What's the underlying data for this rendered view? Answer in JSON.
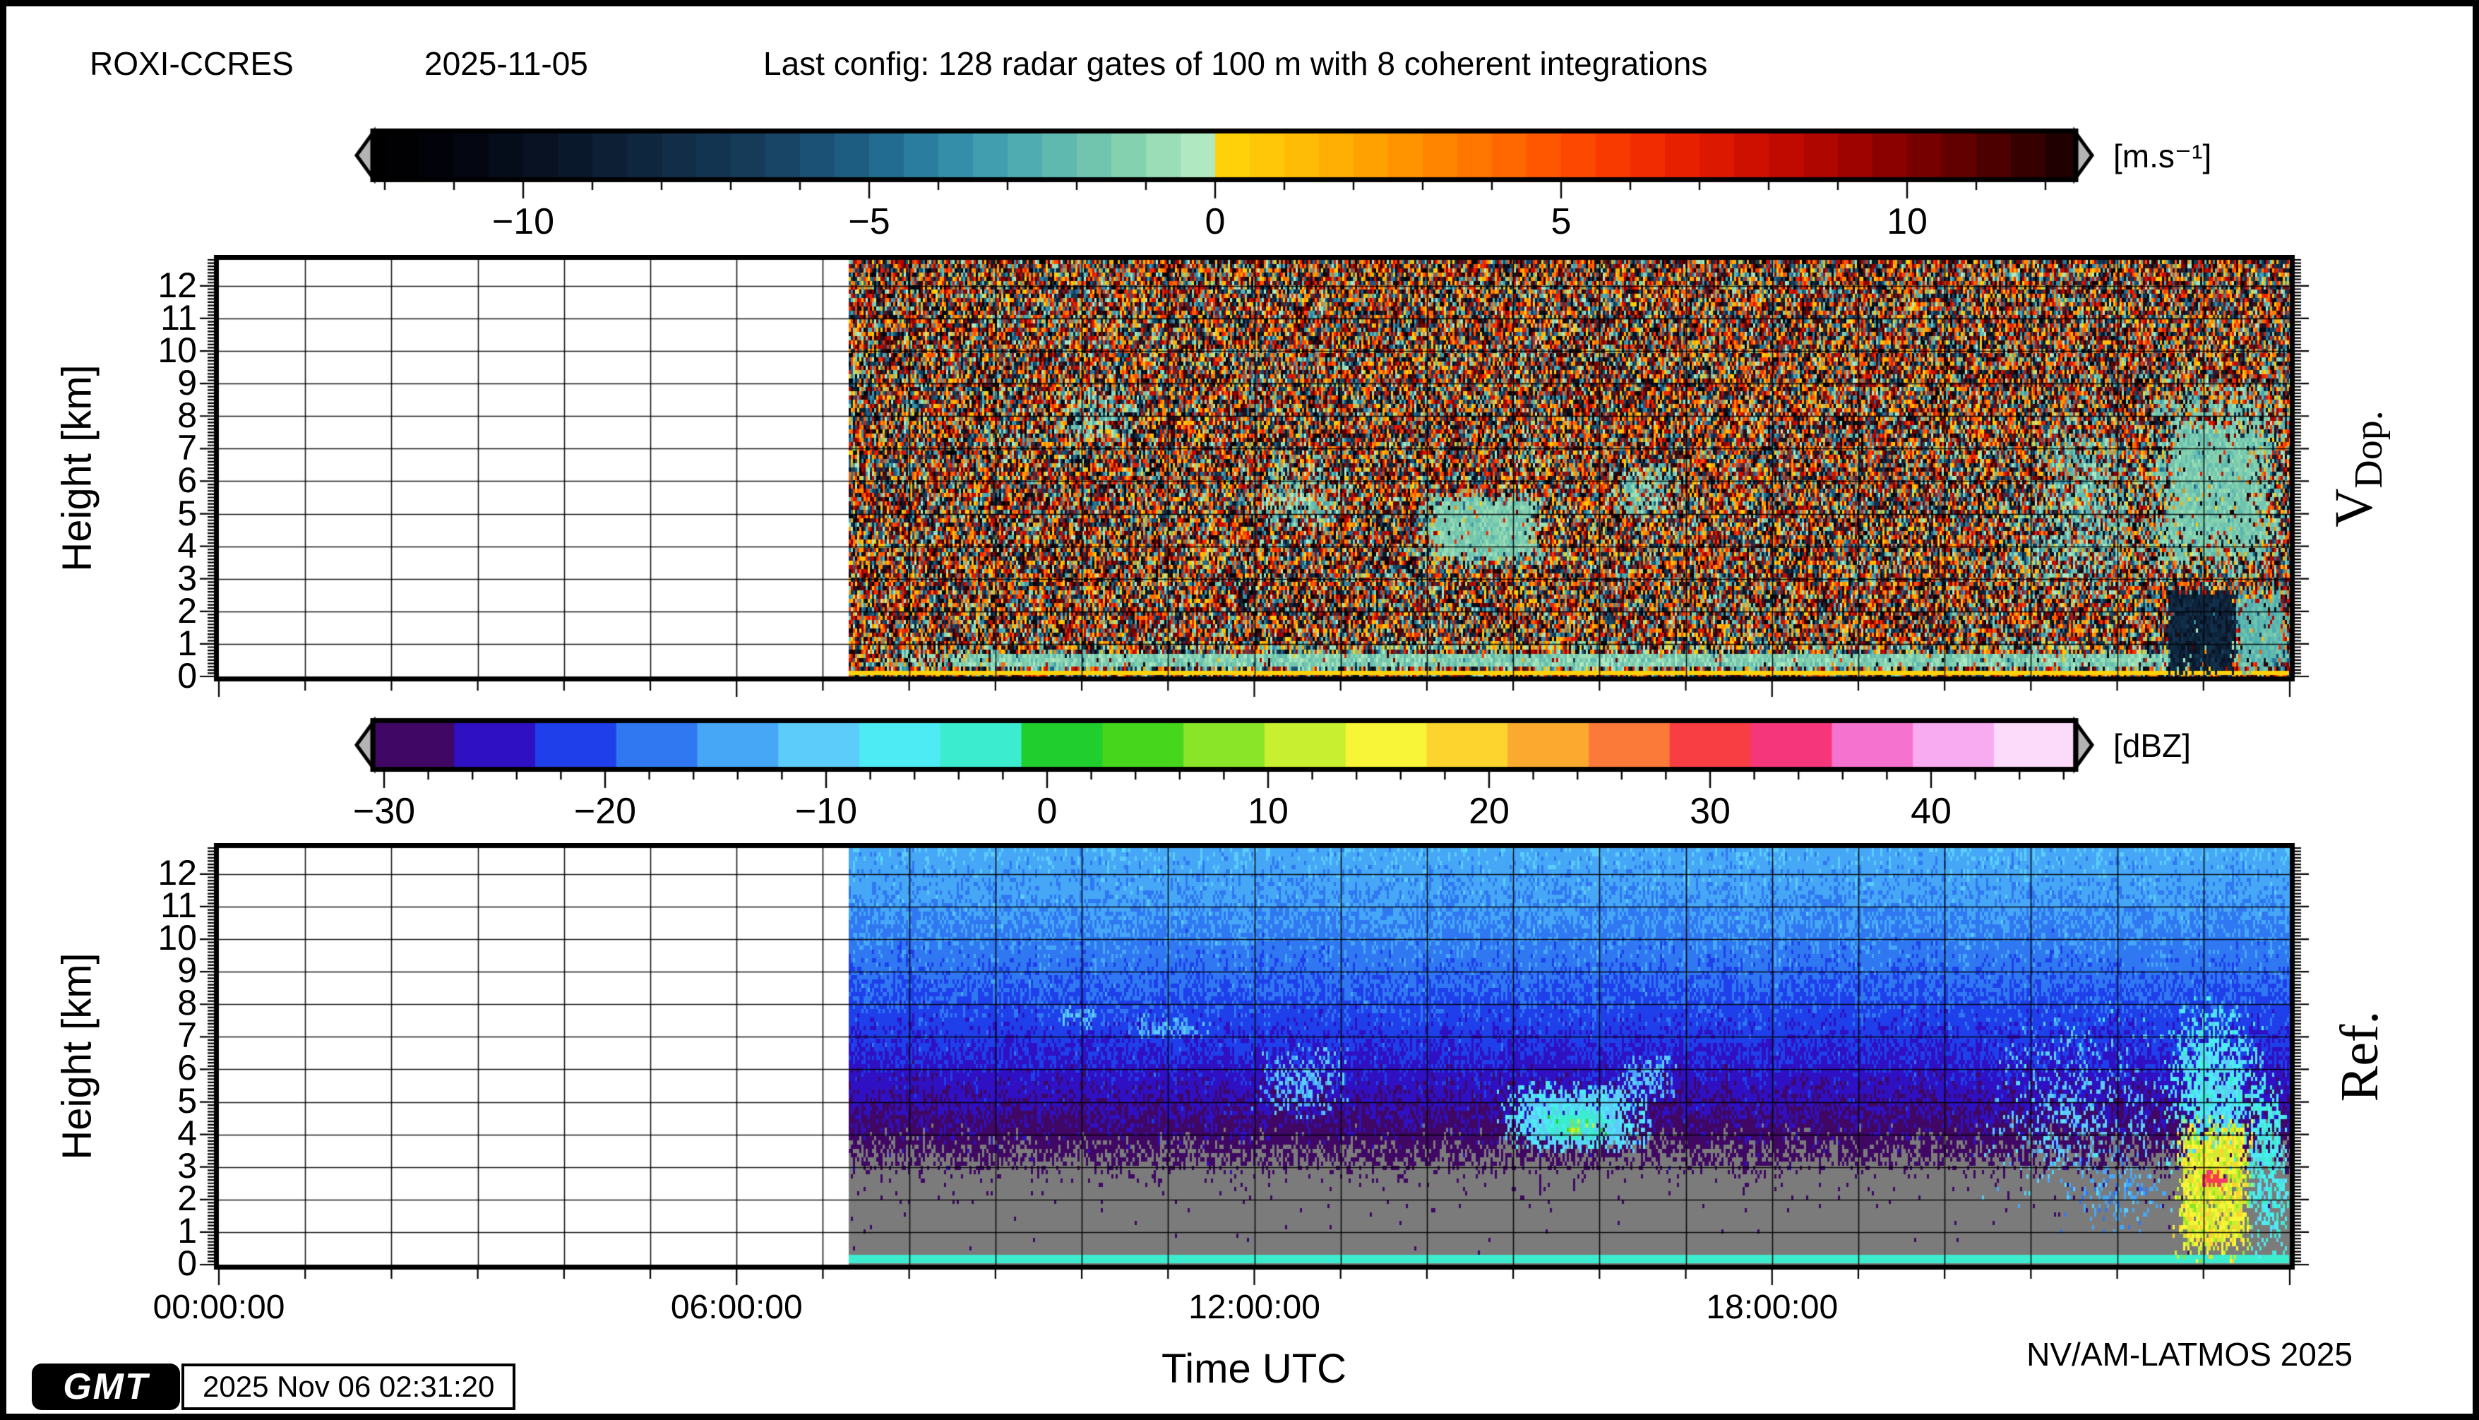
{
  "header": {
    "station": "ROXI-CCRES",
    "date": "2025-11-05",
    "config": "Last config: 128 radar gates of 100 m with 8 coherent integrations"
  },
  "footer": {
    "gmt_logo": "GMT",
    "timestamp": "2025 Nov 06 02:31:20",
    "credit": "NV/AM-LATMOS 2025"
  },
  "x_axis_title": "Time UTC",
  "chart_data": [
    {
      "id": "vdop",
      "type": "heatmap",
      "panel_label": {
        "main": "V",
        "sub": "Dop."
      },
      "y_axis": {
        "label": "Height [km]",
        "min": 0,
        "max": 12.8,
        "major_tick_step": 1,
        "minor_tick_step": 0.1,
        "tick_labels": [
          "0",
          "1",
          "2",
          "3",
          "4",
          "5",
          "6",
          "7",
          "8",
          "9",
          "10",
          "11",
          "12"
        ]
      },
      "x_axis": {
        "min_hour": 0,
        "max_hour": 24,
        "minor_tick_hours": 1,
        "major_tick_hours": 6,
        "tick_labels": [
          "00:00:00",
          "06:00:00",
          "12:00:00",
          "18:00:00"
        ],
        "tick_hours": [
          0,
          6,
          12,
          18
        ]
      },
      "data_start_hour": 7.3,
      "noise": "uniform",
      "colorbar": {
        "unit": "[m.s⁻¹]",
        "min": -12.16,
        "max": 12.43,
        "cell_step": 0.5,
        "major_ticks": [
          -10,
          -5,
          0,
          5,
          10
        ],
        "minor_tick_step": 1,
        "arrow_color": "#b4b4b4",
        "stops": [
          [
            -12.16,
            "#000000"
          ],
          [
            -11,
            "#03050d"
          ],
          [
            -9.5,
            "#091527"
          ],
          [
            -8,
            "#102a43"
          ],
          [
            -6.5,
            "#173f5e"
          ],
          [
            -5,
            "#20648a"
          ],
          [
            -4,
            "#2e86a6"
          ],
          [
            -3,
            "#47a6b2"
          ],
          [
            -2,
            "#68c0af"
          ],
          [
            -1.2,
            "#86d3b0"
          ],
          [
            -0.5,
            "#a6e4bb"
          ],
          [
            -0.02,
            "#baeec7"
          ],
          [
            0.02,
            "#ffd60a"
          ],
          [
            1,
            "#ffc308"
          ],
          [
            2,
            "#ffa802"
          ],
          [
            3,
            "#ff8d00"
          ],
          [
            4,
            "#ff7000"
          ],
          [
            5,
            "#ff4f00"
          ],
          [
            6,
            "#f63300"
          ],
          [
            7,
            "#e31c00"
          ],
          [
            8,
            "#c80c00"
          ],
          [
            9,
            "#a80400"
          ],
          [
            10,
            "#810000"
          ],
          [
            11,
            "#580000"
          ],
          [
            12.43,
            "#190000"
          ]
        ]
      },
      "features": [
        {
          "t": [
            7.3,
            24.0
          ],
          "h": [
            0.0,
            0.22
          ],
          "value": 0.35,
          "prob": 1.0,
          "fuzz": 0,
          "jitter": 0.1
        },
        {
          "t": [
            7.3,
            24.0
          ],
          "h": [
            0.22,
            0.75
          ],
          "value": -1.3,
          "prob": 0.93,
          "fuzz": 0.12,
          "jitter": 1.0
        },
        {
          "t": [
            9.0,
            24.0
          ],
          "h": [
            0.72,
            1.05
          ],
          "value": -1.0,
          "prob": 0.35,
          "fuzz": 0.3,
          "jitter": 1.5
        },
        {
          "t": [
            9.6,
            10.7
          ],
          "h": [
            6.8,
            9.1
          ],
          "value": -1.6,
          "prob": 0.5,
          "fuzz": 0.35,
          "jitter": 1.5
        },
        {
          "t": [
            11.9,
            13.2
          ],
          "h": [
            4.3,
            6.7
          ],
          "value": -1.6,
          "prob": 0.55,
          "fuzz": 0.35,
          "jitter": 1.5
        },
        {
          "t": [
            13.85,
            15.45
          ],
          "h": [
            3.3,
            5.75
          ],
          "value": -1.4,
          "prob": 0.93,
          "fuzz": 0.2,
          "jitter": 0.8
        },
        {
          "t": [
            16.1,
            16.95
          ],
          "h": [
            4.7,
            6.6
          ],
          "value": -1.6,
          "prob": 0.6,
          "fuzz": 0.3,
          "jitter": 1.2
        },
        {
          "t": [
            20.3,
            22.5
          ],
          "h": [
            1.8,
            6.2
          ],
          "value": -1.8,
          "prob": 0.45,
          "fuzz": 0.5,
          "jitter": 1.8
        },
        {
          "t": [
            21.0,
            22.4
          ],
          "h": [
            3.0,
            8.6
          ],
          "value": -1.7,
          "prob": 0.55,
          "fuzz": 0.4,
          "jitter": 1.4
        },
        {
          "t": [
            22.3,
            24.0
          ],
          "h": [
            2.6,
            9.3
          ],
          "value": -1.5,
          "prob": 0.92,
          "fuzz": 0.3,
          "jitter": 0.7
        },
        {
          "t": [
            22.55,
            23.4
          ],
          "h": [
            0.0,
            2.75
          ],
          "value": -8.5,
          "prob": 0.96,
          "fuzz": 0.1,
          "jitter": 1.2
        },
        {
          "t": [
            23.35,
            24.0
          ],
          "h": [
            0.0,
            2.8
          ],
          "value": -2.2,
          "prob": 0.9,
          "fuzz": 0.2,
          "jitter": 0.8
        }
      ]
    },
    {
      "id": "ref",
      "type": "heatmap",
      "panel_label": {
        "main": "Ref.",
        "sub": ""
      },
      "y_axis": {
        "label": "Height [km]",
        "min": 0,
        "max": 12.8,
        "major_tick_step": 1,
        "minor_tick_step": 0.1,
        "tick_labels": [
          "0",
          "1",
          "2",
          "3",
          "4",
          "5",
          "6",
          "7",
          "8",
          "9",
          "10",
          "11",
          "12"
        ]
      },
      "x_axis": {
        "min_hour": 0,
        "max_hour": 24,
        "minor_tick_hours": 1,
        "major_tick_hours": 6,
        "tick_labels": [
          "00:00:00",
          "06:00:00",
          "12:00:00",
          "18:00:00"
        ],
        "tick_hours": [
          0,
          6,
          12,
          18
        ]
      },
      "data_start_hour": 7.3,
      "noise": "profile",
      "no_echo_color": "#7b7b7b",
      "profile": [
        [
          0,
          -36
        ],
        [
          2.8,
          -32.5
        ],
        [
          3.2,
          -30.8
        ],
        [
          3.8,
          -29.2
        ],
        [
          4.5,
          -27.5
        ],
        [
          5.5,
          -25.5
        ],
        [
          7,
          -22.5
        ],
        [
          9,
          -18.5
        ],
        [
          11,
          -15.5
        ],
        [
          12.8,
          -13.5
        ]
      ],
      "colorbar": {
        "unit": "[dBZ]",
        "min": -30.5,
        "max": 46.5,
        "cell_step": 3.667,
        "major_ticks": [
          -30,
          -20,
          -10,
          0,
          10,
          20,
          30,
          40
        ],
        "minor_tick_step": 2,
        "arrow_color": "#b4b4b4",
        "stops": [
          [
            -30.5,
            "#330639"
          ],
          [
            -27,
            "#4c0a8c"
          ],
          [
            -24,
            "#2214de"
          ],
          [
            -21,
            "#1e45ec"
          ],
          [
            -18,
            "#2f73f2"
          ],
          [
            -15,
            "#3f9bf6"
          ],
          [
            -12,
            "#55c0f9"
          ],
          [
            -9,
            "#63d8fb"
          ],
          [
            -6,
            "#48f1f1"
          ],
          [
            -2.5,
            "#3becc9"
          ],
          [
            1,
            "#1ecb1e"
          ],
          [
            4.5,
            "#49d71c"
          ],
          [
            8,
            "#8ae428"
          ],
          [
            11.5,
            "#c6ef30"
          ],
          [
            15,
            "#f8f83a"
          ],
          [
            18.5,
            "#fdda2e"
          ],
          [
            22,
            "#fdb22e"
          ],
          [
            25.5,
            "#fc8637"
          ],
          [
            29,
            "#fa5040"
          ],
          [
            32,
            "#f61a4a"
          ],
          [
            35.5,
            "#f556b1"
          ],
          [
            39,
            "#f78ceb"
          ],
          [
            42.5,
            "#fbc3f6"
          ],
          [
            46.5,
            "#fdeffc"
          ]
        ]
      },
      "features": [
        {
          "t": [
            7.3,
            24.0
          ],
          "h": [
            0.1,
            0.28
          ],
          "value": -4,
          "prob": 1.0,
          "fuzz": 0,
          "jitter": 0.5
        },
        {
          "t": [
            9.7,
            10.25
          ],
          "h": [
            7.2,
            7.95
          ],
          "value": -12,
          "prob": 0.55,
          "fuzz": 0.3,
          "jitter": 2
        },
        {
          "t": [
            10.5,
            11.55
          ],
          "h": [
            6.9,
            7.7
          ],
          "value": -13,
          "prob": 0.5,
          "fuzz": 0.3,
          "jitter": 2
        },
        {
          "t": [
            11.95,
            13.2
          ],
          "h": [
            4.4,
            6.8
          ],
          "value": -12,
          "prob": 0.55,
          "fuzz": 0.4,
          "jitter": 2.5
        },
        {
          "t": [
            14.8,
            16.65
          ],
          "h": [
            3.4,
            5.65
          ],
          "value": -9,
          "prob": 0.92,
          "fuzz": 0.25,
          "jitter": 2
        },
        {
          "t": [
            15.25,
            16.2
          ],
          "h": [
            3.7,
            4.9
          ],
          "value": -3,
          "prob": 0.85,
          "fuzz": 0.3,
          "jitter": 2
        },
        {
          "t": [
            15.55,
            15.95
          ],
          "h": [
            3.9,
            4.5
          ],
          "value": 9,
          "prob": 0.6,
          "fuzz": 0.3,
          "jitter": 4
        },
        {
          "t": [
            16.2,
            16.95
          ],
          "h": [
            4.9,
            6.5
          ],
          "value": -12,
          "prob": 0.5,
          "fuzz": 0.3,
          "jitter": 2
        },
        {
          "t": [
            20.35,
            22.65
          ],
          "h": [
            1.6,
            8.1
          ],
          "value": -11,
          "prob": 0.4,
          "fuzz": 0.5,
          "jitter": 3
        },
        {
          "t": [
            21.3,
            22.7
          ],
          "h": [
            0.8,
            3.4
          ],
          "value": -14,
          "prob": 0.3,
          "fuzz": 0.4,
          "jitter": 3
        },
        {
          "t": [
            22.5,
            23.75
          ],
          "h": [
            2.5,
            8.3
          ],
          "value": -7,
          "prob": 0.85,
          "fuzz": 0.35,
          "jitter": 3
        },
        {
          "t": [
            22.65,
            23.6
          ],
          "h": [
            0.0,
            4.6
          ],
          "value": 14,
          "prob": 0.92,
          "fuzz": 0.2,
          "jitter": 5
        },
        {
          "t": [
            22.95,
            23.3
          ],
          "h": [
            2.3,
            2.9
          ],
          "value": 31,
          "prob": 0.8,
          "fuzz": 0.2,
          "jitter": 3
        },
        {
          "t": [
            23.5,
            24.0
          ],
          "h": [
            0.0,
            6.0
          ],
          "value": -6,
          "prob": 0.7,
          "fuzz": 0.3,
          "jitter": 3
        }
      ]
    }
  ]
}
